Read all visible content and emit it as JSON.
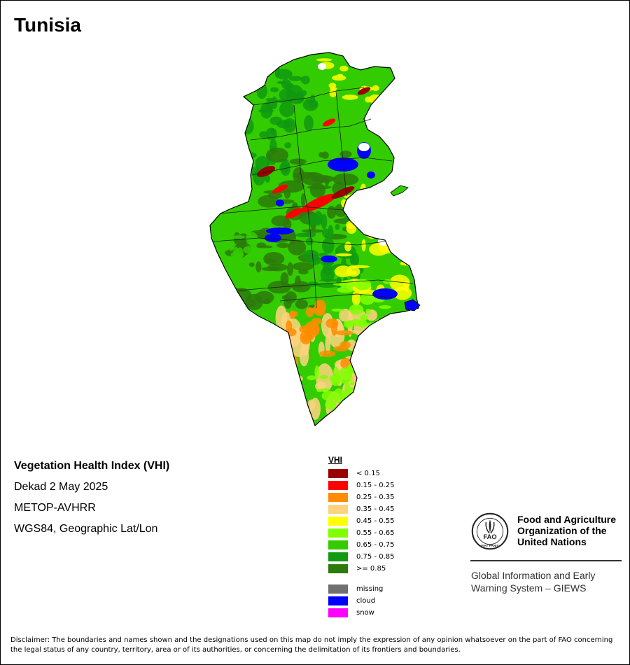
{
  "map": {
    "title": "Tunisia",
    "info": {
      "product": "Vegetation Health Index (VHI)",
      "period": "Dekad 2 May 2025",
      "sensor": "METOP-AVHRR",
      "projection": "WGS84, Geographic Lat/Lon"
    },
    "legend": {
      "title": "VHI",
      "classes": [
        {
          "label": "< 0.15",
          "color": "#990000"
        },
        {
          "label": "0.15 - 0.25",
          "color": "#ff0000"
        },
        {
          "label": "0.25 - 0.35",
          "color": "#ff8c00"
        },
        {
          "label": "0.35 - 0.45",
          "color": "#ffd27f"
        },
        {
          "label": "0.45 - 0.55",
          "color": "#ffff00"
        },
        {
          "label": "0.55 - 0.65",
          "color": "#80ff00"
        },
        {
          "label": "0.65 - 0.75",
          "color": "#33cc00"
        },
        {
          "label": "0.75 - 0.85",
          "color": "#119911"
        },
        {
          "label": ">= 0.85",
          "color": "#2b7a0b"
        }
      ],
      "special": [
        {
          "label": "missing",
          "color": "#707070"
        },
        {
          "label": "cloud",
          "color": "#0000ff"
        },
        {
          "label": "snow",
          "color": "#ff00ff"
        }
      ]
    },
    "organization": {
      "logo_text": "FAO",
      "logo_motto": "FIAT PANIS",
      "name": "Food and Agriculture Organization of the United Nations",
      "giews_line1": "Global Information and Early",
      "giews_line2": "Warning System – GIEWS"
    },
    "disclaimer": "Disclaimer: The boundaries and names shown and the designations used on this map do not imply the expression of any opinion whatsoever on the part of FAO concerning the legal status of any country, territory, area or of its authorities, or concerning the delimitation of its frontiers and boundaries."
  }
}
